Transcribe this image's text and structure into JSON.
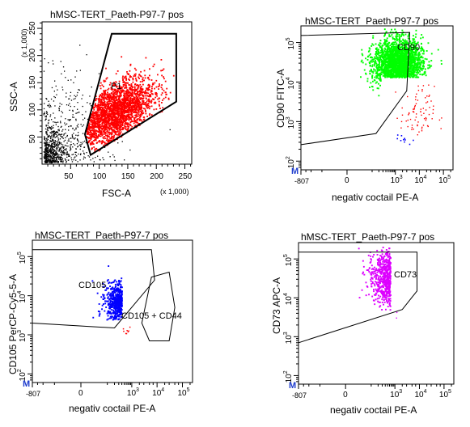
{
  "chart_data": [
    {
      "type": "scatter",
      "title": "hMSC-TERT_Paeth-P97-7 pos",
      "xlabel": "FSC-A",
      "ylabel": "SSC-A",
      "x_scale_note": "(x 1,000)",
      "y_scale_note": "(x 1,000)",
      "x_ticks": [
        "50",
        "100",
        "150",
        "200",
        "250"
      ],
      "y_ticks": [
        "50",
        "100",
        "150",
        "200",
        "250"
      ],
      "xlim": [
        0,
        262
      ],
      "ylim": [
        0,
        262
      ],
      "grid": false,
      "gates": [
        {
          "label": "P1",
          "polygon": [
            [
              75,
              55
            ],
            [
              122,
              240
            ],
            [
              235,
              240
            ],
            [
              235,
              115
            ],
            [
              85,
              17
            ]
          ]
        }
      ],
      "series": [
        {
          "name": "P1",
          "color": "#ff0000",
          "count_approx": 2200,
          "center": [
            125,
            95
          ],
          "spread": [
            35,
            32
          ]
        },
        {
          "name": "",
          "color": "#000000",
          "count_approx": 600,
          "center": [
            40,
            45
          ],
          "spread": [
            45,
            60
          ]
        }
      ]
    },
    {
      "type": "scatter",
      "title": "hMSC-TERT_Paeth-P97-7 pos",
      "xlabel": "negativ coctail PE-A",
      "ylabel": "CD90 FITC-A",
      "x_ticks": [
        "-807",
        "0",
        "10^3",
        "10^4",
        "10^5"
      ],
      "y_ticks": [
        "10^2",
        "10^3",
        "10^4",
        "10^5"
      ],
      "x_scale": "biexponential",
      "y_scale": "log",
      "corner_marker": "M",
      "grid": false,
      "gates": [
        {
          "label": "CD90",
          "polygon": [
            [
              -807,
              260
            ],
            [
              -807,
              150000
            ],
            [
              4000,
              180000
            ],
            [
              3000,
              6000
            ],
            [
              150,
              500
            ]
          ]
        }
      ],
      "series": [
        {
          "name": "CD90",
          "color": "#00ff00",
          "count_approx": 2000
        },
        {
          "name": "",
          "color": "#ff0000",
          "count_approx": 60
        },
        {
          "name": "",
          "color": "#0000ff",
          "count_approx": 8
        }
      ]
    },
    {
      "type": "scatter",
      "title": "hMSC-TERT_Paeth-P97-7 pos",
      "xlabel": "negativ coctail PE-A",
      "ylabel": "CD105 PerCP-Cy5-5-A",
      "x_ticks": [
        "-807",
        "0",
        "10^3",
        "10^4",
        "10^5"
      ],
      "y_ticks": [
        "10^2",
        "10^3",
        "10^4",
        "10^5"
      ],
      "x_scale": "biexponential",
      "y_scale": "log",
      "corner_marker": "M",
      "grid": false,
      "gates": [
        {
          "label": "CD105",
          "polygon": [
            [
              -807,
              2000
            ],
            [
              -807,
              150000
            ],
            [
              6000,
              150000
            ],
            [
              8000,
              25000
            ],
            [
              200,
              1500
            ]
          ]
        },
        {
          "label": "CD105 + CD44",
          "polygon": [
            [
              2500,
              2000
            ],
            [
              6000,
              30000
            ],
            [
              30000,
              40000
            ],
            [
              50000,
              5000
            ],
            [
              30000,
              700
            ],
            [
              5000,
              700
            ]
          ]
        }
      ],
      "series": [
        {
          "name": "CD105",
          "color": "#0000ff",
          "count_approx": 2000
        },
        {
          "name": "CD105 + CD44",
          "color": "#ff0000",
          "count_approx": 500
        }
      ]
    },
    {
      "type": "scatter",
      "title": "hMSC-TERT_Paeth-P97-7 pos",
      "xlabel": "negativ coctail PE-A",
      "ylabel": "CD73 APC-A",
      "x_ticks": [
        "-807",
        "0",
        "10^3",
        "10^4",
        "10^5"
      ],
      "y_ticks": [
        "10^2",
        "10^3",
        "10^4",
        "10^5"
      ],
      "x_scale": "biexponential",
      "y_scale": "log",
      "corner_marker": "M",
      "grid": false,
      "gates": [
        {
          "label": "CD73",
          "polygon": [
            [
              -807,
              700
            ],
            [
              -807,
              150000
            ],
            [
              8000,
              150000
            ],
            [
              8000,
              15000
            ],
            [
              2000,
              5000
            ]
          ]
        }
      ],
      "series": [
        {
          "name": "CD73",
          "color": "#dd00ff",
          "count_approx": 2200
        }
      ]
    }
  ]
}
